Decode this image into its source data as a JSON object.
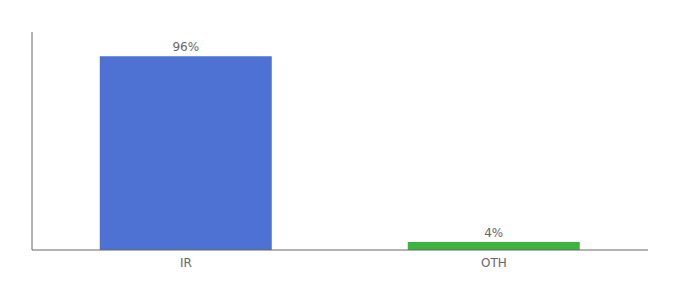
{
  "chart_data": {
    "type": "bar",
    "categories": [
      "IR",
      "OTH"
    ],
    "values": [
      96,
      4
    ],
    "value_labels": [
      "96%",
      "4%"
    ],
    "colors": [
      "#4e72d4",
      "#3db53d"
    ],
    "ylim": [
      0,
      108
    ],
    "data_labels": true,
    "tick_labels": "x",
    "grid": false
  }
}
